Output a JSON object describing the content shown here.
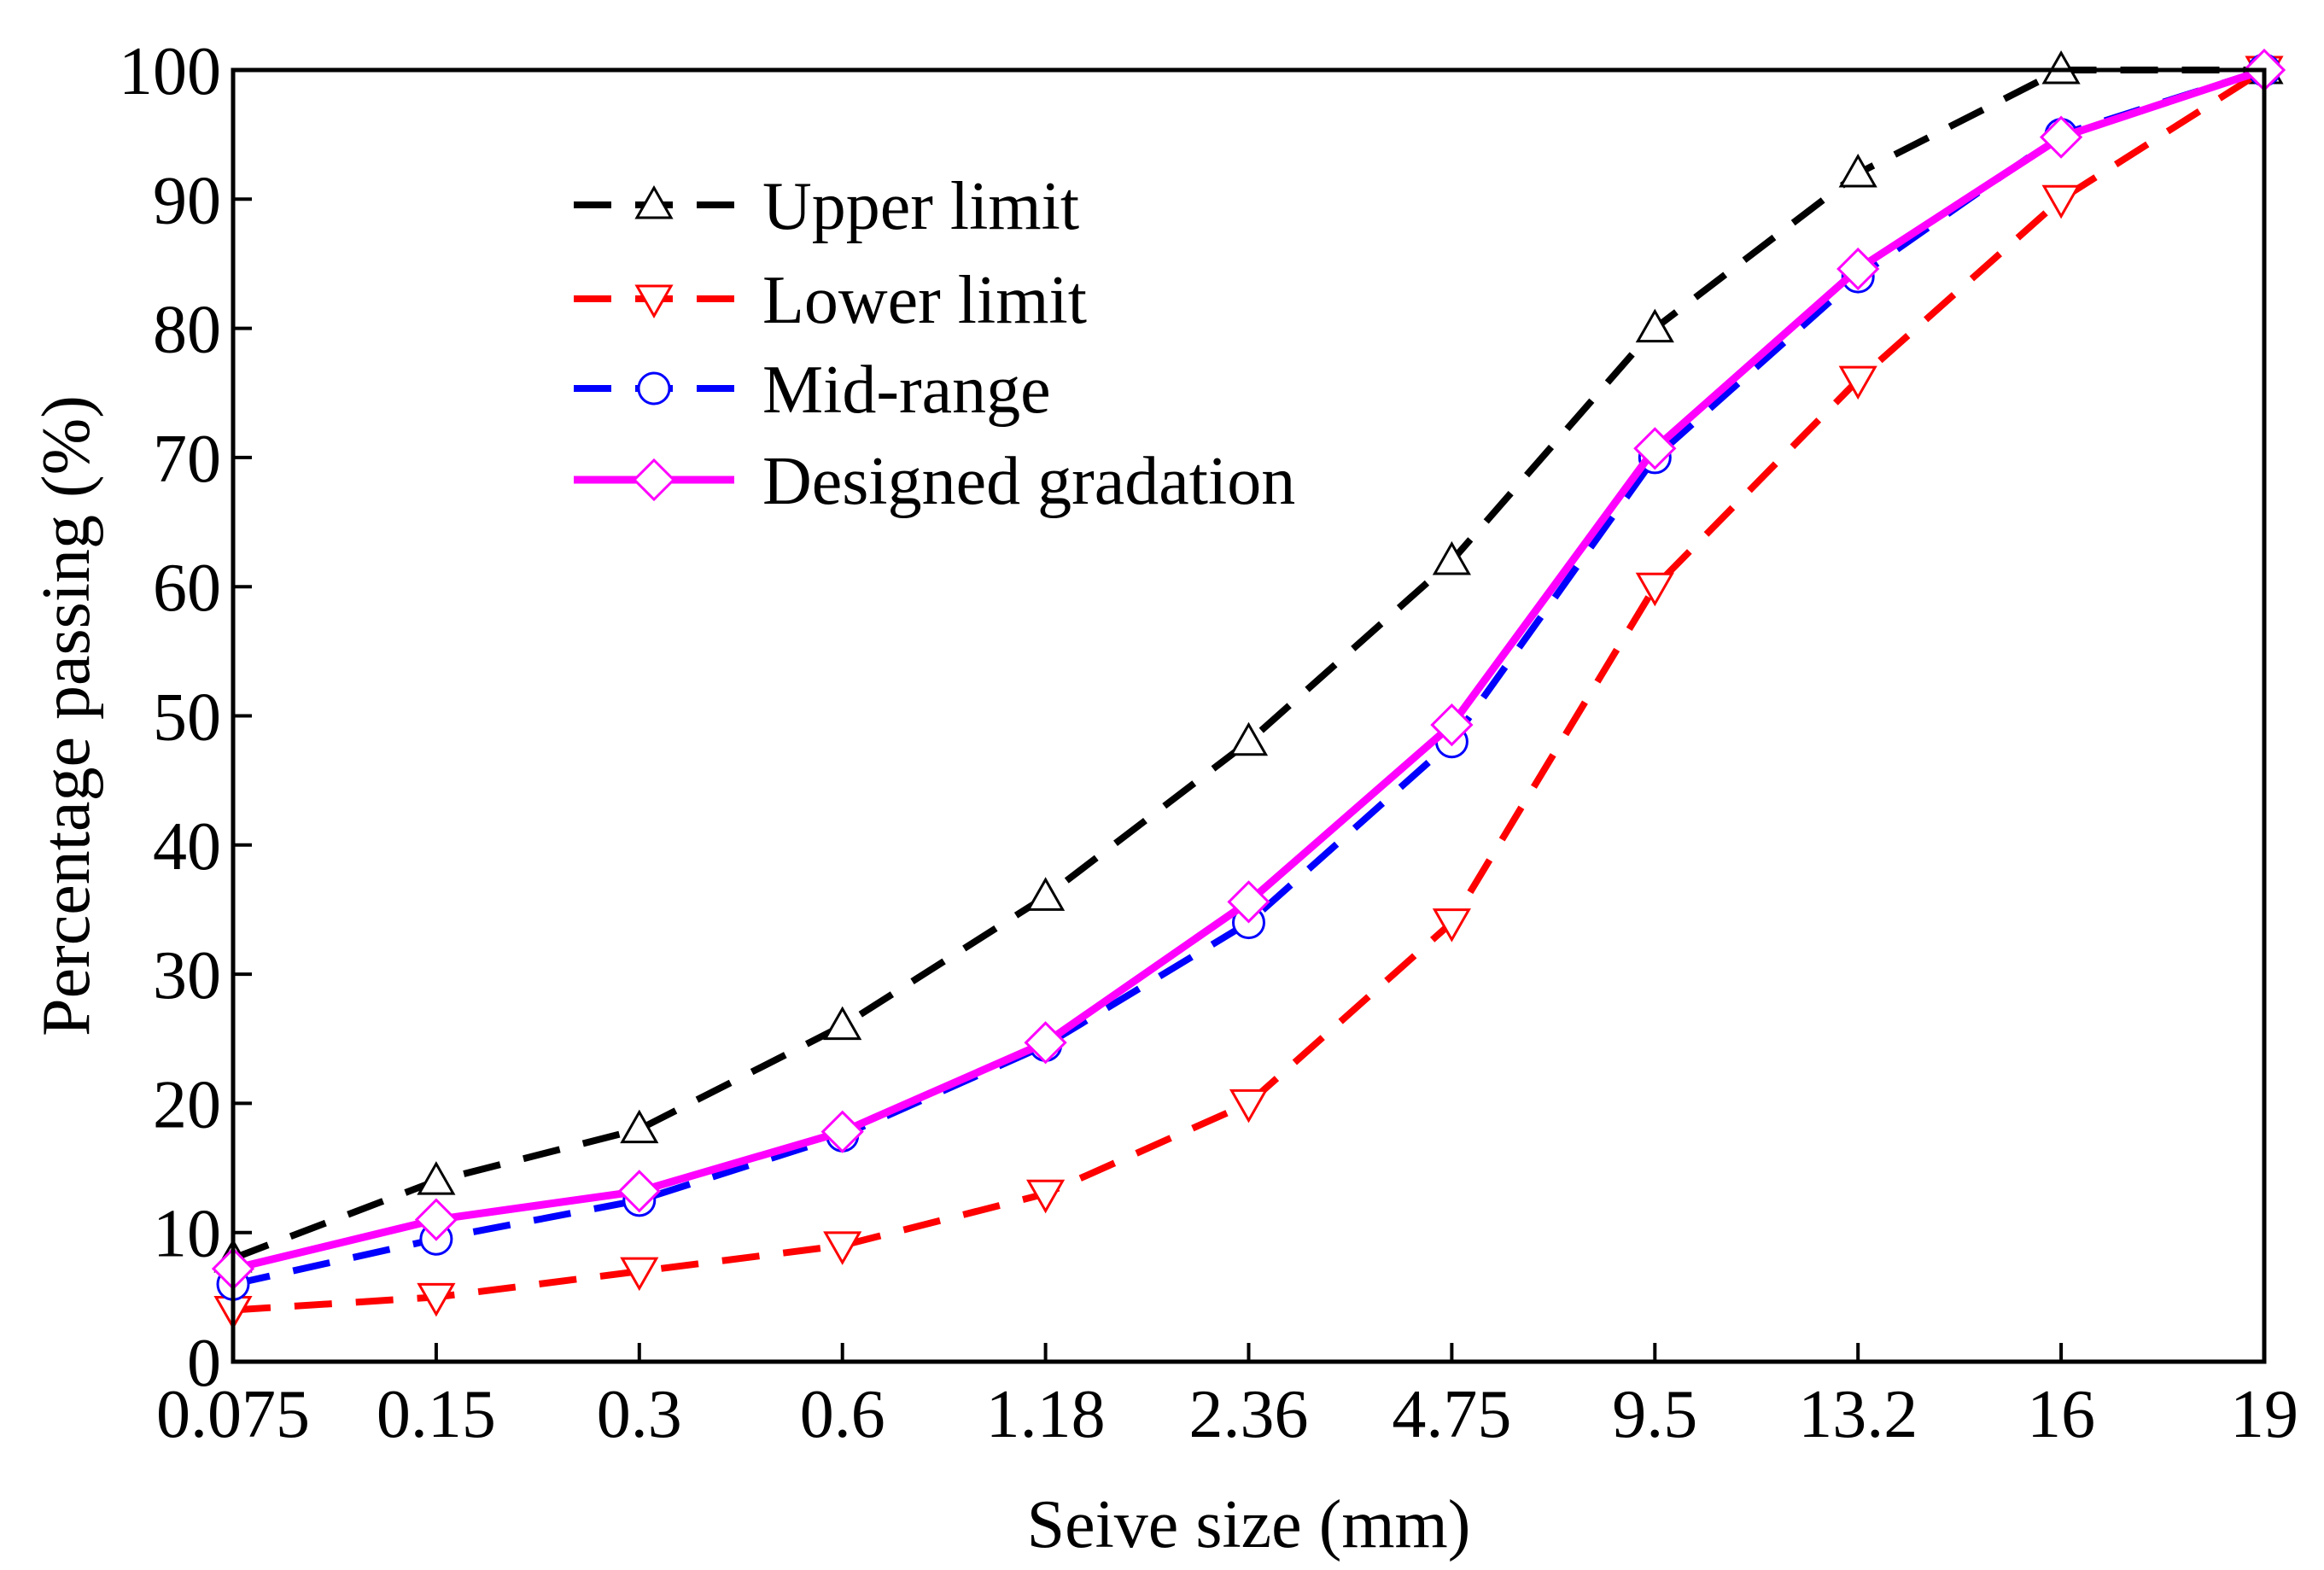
{
  "chart_data": {
    "type": "line",
    "title": "",
    "xlabel": "Seive size (mm)",
    "ylabel": "Percentage passing (%)",
    "categories": [
      "0.075",
      "0.15",
      "0.3",
      "0.6",
      "1.18",
      "2.36",
      "4.75",
      "9.5",
      "13.2",
      "16",
      "19"
    ],
    "ylim": [
      0,
      100
    ],
    "yticks": [
      0,
      10,
      20,
      30,
      40,
      50,
      60,
      70,
      80,
      90,
      100
    ],
    "grid": false,
    "legend_position": "top-left",
    "series": [
      {
        "name": "Upper limit",
        "values": [
          8,
          14,
          18,
          26,
          36,
          48,
          62,
          80,
          92,
          100,
          100
        ],
        "color": "#000000",
        "line_style": "dashed",
        "marker": "triangle-up"
      },
      {
        "name": "Lower limit",
        "values": [
          4,
          5,
          7,
          9,
          13,
          20,
          34,
          60,
          76,
          90,
          100
        ],
        "color": "#ff0000",
        "line_style": "dashed",
        "marker": "triangle-down"
      },
      {
        "name": "Mid-range",
        "values": [
          6,
          9.5,
          12.5,
          17.5,
          24.5,
          34,
          48,
          70,
          84,
          95,
          100
        ],
        "color": "#0000ff",
        "line_style": "dashed",
        "marker": "circle"
      },
      {
        "name": "Designed gradation",
        "values": [
          7.2,
          11,
          13.2,
          17.8,
          24.7,
          35.6,
          49.3,
          70.7,
          84.6,
          94.8,
          100
        ],
        "color": "#ff00ff",
        "line_style": "solid",
        "marker": "diamond"
      }
    ]
  }
}
